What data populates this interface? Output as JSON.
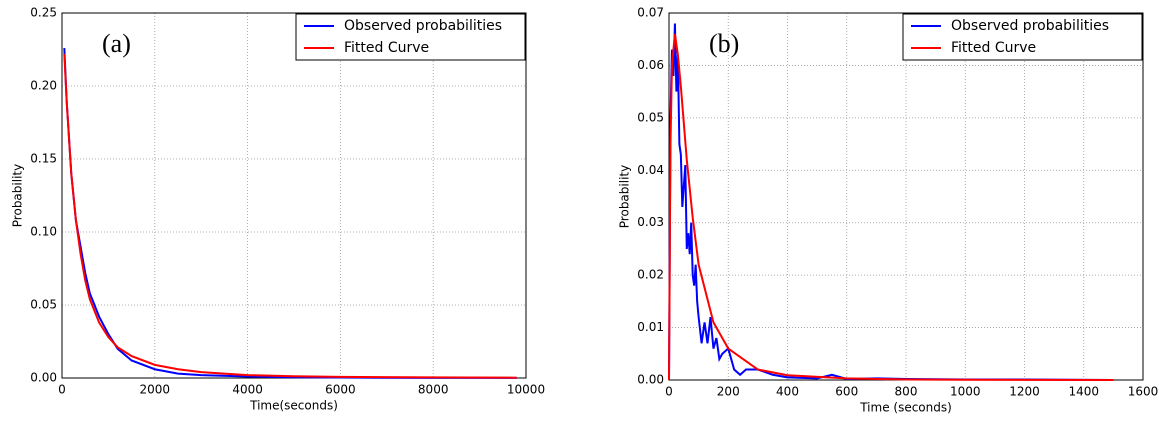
{
  "chart_data": [
    {
      "type": "line",
      "annotation": "(a)",
      "x_label": "Time(seconds)",
      "y_label": "Probability",
      "xlim": [
        0,
        10000
      ],
      "ylim": [
        0,
        0.25
      ],
      "xticks": [
        0,
        2000,
        4000,
        6000,
        8000,
        10000
      ],
      "yticks": [
        {
          "value": 0,
          "label": "0.00"
        },
        0.05,
        {
          "value": 0.1,
          "label": "0.10"
        },
        0.15,
        {
          "value": 0.2,
          "label": "0.20"
        },
        0.25
      ],
      "grid": true,
      "legend": "upper right",
      "series": [
        {
          "name": "Observed probabilities",
          "color": "#0000ff",
          "x": [
            50,
            100,
            200,
            300,
            400,
            500,
            600,
            800,
            1000,
            1200,
            1500,
            2000,
            2500,
            3000,
            4000,
            5000,
            6000,
            8000,
            9800
          ],
          "values": [
            0.226,
            0.19,
            0.14,
            0.108,
            0.09,
            0.072,
            0.058,
            0.042,
            0.03,
            0.02,
            0.012,
            0.006,
            0.003,
            0.002,
            0.001,
            0.0005,
            0.0003,
            0.0001,
            0.0001
          ]
        },
        {
          "name": "Fitted Curve",
          "color": "#ff0000",
          "x": [
            50,
            100,
            200,
            300,
            400,
            500,
            600,
            800,
            1000,
            1200,
            1500,
            2000,
            2500,
            3000,
            4000,
            5000,
            6000,
            8000,
            9800
          ],
          "values": [
            0.222,
            0.19,
            0.14,
            0.108,
            0.085,
            0.067,
            0.054,
            0.038,
            0.028,
            0.021,
            0.015,
            0.009,
            0.006,
            0.004,
            0.002,
            0.0012,
            0.0008,
            0.0004,
            0.0002
          ]
        }
      ]
    },
    {
      "type": "line",
      "annotation": "(b)",
      "x_label": "Time (seconds)",
      "y_label": "Probability",
      "xlim": [
        0,
        1600
      ],
      "ylim": [
        0,
        0.07
      ],
      "xticks": [
        0,
        200,
        400,
        600,
        800,
        1000,
        1200,
        1400,
        1600
      ],
      "yticks": [
        {
          "value": 0,
          "label": "0.00"
        },
        0.01,
        0.02,
        0.03,
        0.04,
        0.05,
        0.06,
        0.07
      ],
      "grid": true,
      "legend": "upper right",
      "series": [
        {
          "name": "Observed probabilities",
          "color": "#0000ff",
          "x": [
            0,
            5,
            10,
            15,
            20,
            25,
            30,
            35,
            40,
            45,
            50,
            55,
            60,
            65,
            70,
            75,
            80,
            85,
            90,
            95,
            100,
            110,
            120,
            130,
            140,
            150,
            160,
            170,
            180,
            200,
            220,
            240,
            260,
            300,
            350,
            400,
            500,
            550,
            600,
            700,
            800,
            1000,
            1200,
            1500
          ],
          "values": [
            0,
            0.05,
            0.063,
            0.058,
            0.068,
            0.055,
            0.062,
            0.045,
            0.043,
            0.033,
            0.037,
            0.041,
            0.025,
            0.028,
            0.024,
            0.03,
            0.02,
            0.018,
            0.022,
            0.015,
            0.012,
            0.007,
            0.011,
            0.007,
            0.012,
            0.006,
            0.008,
            0.004,
            0.005,
            0.006,
            0.002,
            0.001,
            0.002,
            0.002,
            0.001,
            0.0005,
            0.0003,
            0.001,
            0.0002,
            0.0003,
            0.0002,
            0.0001,
            0.0001,
            0
          ]
        },
        {
          "name": "Fitted Curve",
          "color": "#ff0000",
          "x": [
            0,
            5,
            10,
            20,
            30,
            40,
            60,
            80,
            100,
            150,
            200,
            300,
            400,
            600,
            800,
            1000,
            1200,
            1500
          ],
          "values": [
            0,
            0.045,
            0.06,
            0.066,
            0.062,
            0.056,
            0.042,
            0.031,
            0.022,
            0.011,
            0.006,
            0.002,
            0.0009,
            0.0003,
            0.0001,
            5e-05,
            2e-05,
            1e-05
          ]
        }
      ]
    }
  ]
}
